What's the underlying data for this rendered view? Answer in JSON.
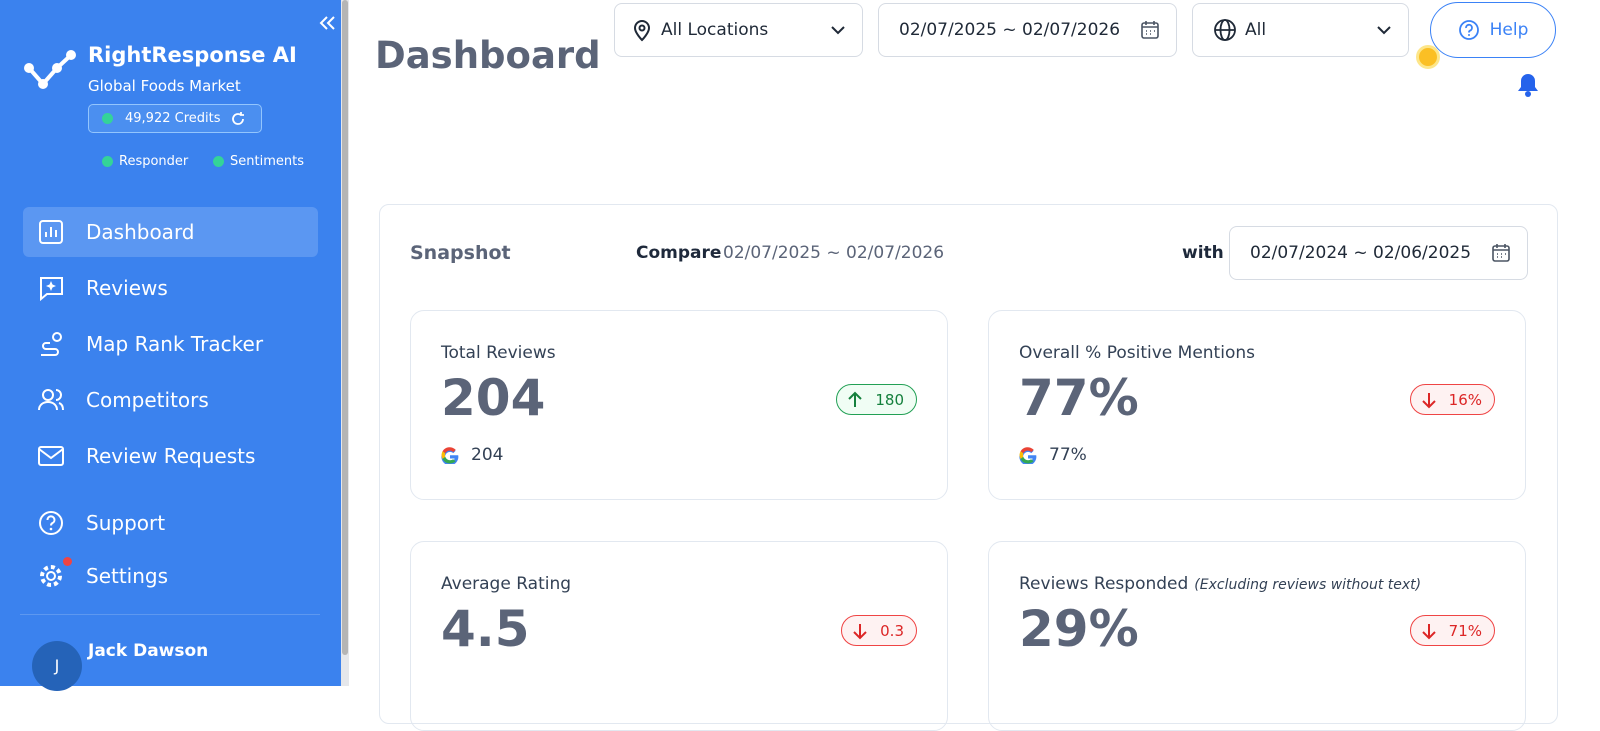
{
  "sidebar": {
    "brand": "RightResponse AI",
    "org": "Global Foods Market",
    "credits": "49,922 Credits",
    "badges": [
      "Responder",
      "Sentiments"
    ],
    "nav": [
      "Dashboard",
      "Reviews",
      "Map Rank Tracker",
      "Competitors",
      "Review Requests"
    ],
    "nav2": [
      "Support",
      "Settings"
    ],
    "user": {
      "name": "Jack Dawson",
      "initial": "J"
    }
  },
  "header": {
    "title": "Dashboard",
    "location": "All Locations",
    "date_range": "02/07/2025 ~ 02/07/2026",
    "language": "All",
    "help": "Help"
  },
  "snapshot": {
    "title": "Snapshot",
    "compare_label": "Compare",
    "compare_range": "02/07/2025 ~ 02/07/2026",
    "with_label": "with",
    "with_range": "02/07/2024 ~ 02/06/2025",
    "cards": [
      {
        "title": "Total Reviews",
        "value": "204",
        "change": "180",
        "direction": "up",
        "google": "204"
      },
      {
        "title": "Overall % Positive Mentions",
        "value": "77%",
        "change": "16%",
        "direction": "down",
        "google": "77%"
      },
      {
        "title": "Average Rating",
        "value": "4.5",
        "change": "0.3",
        "direction": "down"
      },
      {
        "title": "Reviews Responded",
        "note": "(Excluding reviews without text)",
        "value": "29%",
        "change": "71%",
        "direction": "down"
      }
    ]
  }
}
